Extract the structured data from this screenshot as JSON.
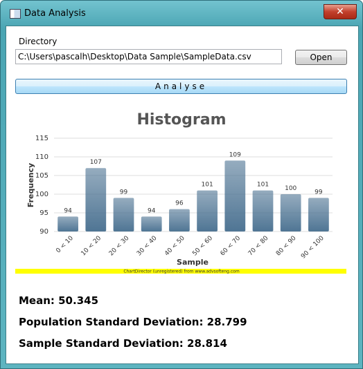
{
  "window": {
    "title": "Data Analysis"
  },
  "directory": {
    "label": "Directory",
    "path": "C:\\Users\\pascalh\\Desktop\\Data Sample\\SampleData.csv",
    "open_button": "Open"
  },
  "analyse_button": "Analyse",
  "chart_data": {
    "type": "bar",
    "title": "Histogram",
    "x_label": "Sample",
    "y_label": "Frequency",
    "categories": [
      "0 < 10",
      "10 < 20",
      "20 < 30",
      "30 < 40",
      "40 < 50",
      "50 < 60",
      "60 < 70",
      "70 < 80",
      "80 < 90",
      "90 < 100"
    ],
    "values": [
      94,
      107,
      99,
      94,
      96,
      101,
      109,
      101,
      100,
      99
    ],
    "color": "#4f7594",
    "ylim": [
      90,
      115
    ],
    "yticks": [
      90,
      95,
      100,
      105,
      110,
      115
    ],
    "grid": true,
    "watermark": "ChartDirector (unregistered) from www.advsofteng.com"
  },
  "stats": [
    "Mean: 50.345",
    "Population Standard Deviation: 28.799",
    "Sample Standard Deviation: 28.814"
  ]
}
